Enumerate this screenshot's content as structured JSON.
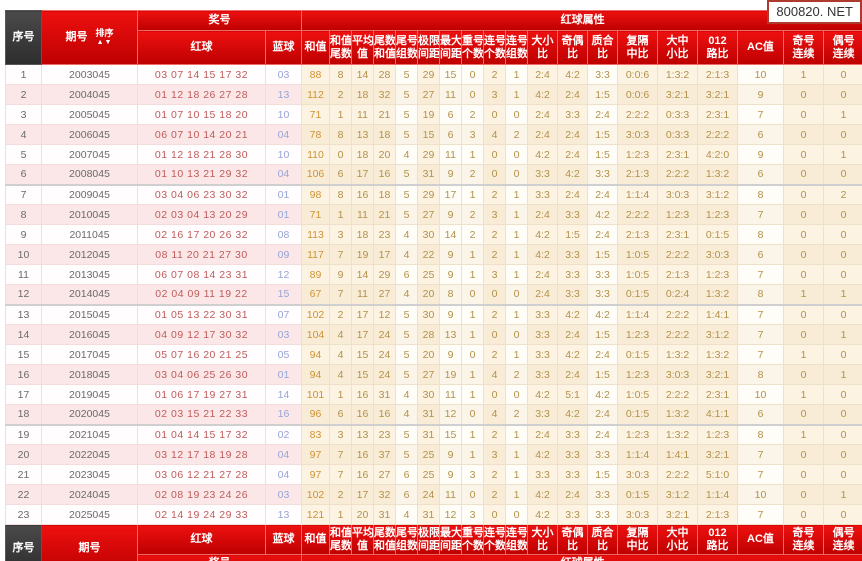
{
  "watermark": "800820. NET",
  "colors": {
    "header_red_top": "#ee1010",
    "header_red_bottom": "#bd0000",
    "dark_cell": "#3b3b3b",
    "red_ball": "#bf5b5b",
    "blue_ball": "#97a5d6",
    "value_text": "#b2914a",
    "row_pink": "#fbe7e7",
    "attr_cream": "#fdf3e2"
  },
  "labels": {
    "serial": "序号",
    "period": "期号",
    "sort": "排序",
    "sort_arrows": "▲▼",
    "prize_group": "奖号",
    "attr_group": "红球属性",
    "red": "红球",
    "blue": "蓝球"
  },
  "attr_headers": [
    [
      "和值"
    ],
    [
      "和值",
      "尾数"
    ],
    [
      "平均",
      "值"
    ],
    [
      "尾数",
      "和值"
    ],
    [
      "尾号",
      "组数"
    ],
    [
      "极限",
      "间距"
    ],
    [
      "最大",
      "间距"
    ],
    [
      "重号",
      "个数"
    ],
    [
      "连号",
      "个数"
    ],
    [
      "连号",
      "组数"
    ],
    [
      "大小",
      "比"
    ],
    [
      "奇偶",
      "比"
    ],
    [
      "质合",
      "比"
    ],
    [
      "复隔",
      "中比"
    ],
    [
      "大中",
      "小比"
    ],
    [
      "012",
      "路比"
    ],
    [
      "AC值"
    ],
    [
      "奇号",
      "连续"
    ],
    [
      "偶号",
      "连续"
    ]
  ],
  "attr_keys": [
    "sum",
    "sum-tail",
    "mean",
    "tail-sum",
    "tail-groups",
    "span",
    "max-gap",
    "repeat-count",
    "consecutive-count",
    "consecutive-groups",
    "big-small-ratio",
    "odd-even-ratio",
    "prime-composite-ratio",
    "fu-ge-zhong-ratio",
    "big-mid-small-ratio",
    "road-012-ratio",
    "ac-value",
    "odd-consecutive",
    "even-consecutive"
  ],
  "rows": [
    {
      "no": "1",
      "period": "2003045",
      "reds": "03 07 14 15 17 32",
      "blue": "03",
      "vals": [
        "88",
        "8",
        "14",
        "28",
        "5",
        "29",
        "15",
        "0",
        "2",
        "1",
        "2:4",
        "4:2",
        "3:3",
        "0:0:6",
        "1:3:2",
        "2:1:3",
        "10",
        "1",
        "0"
      ]
    },
    {
      "no": "2",
      "period": "2004045",
      "reds": "01 12 18 26 27 28",
      "blue": "13",
      "vals": [
        "112",
        "2",
        "18",
        "32",
        "5",
        "27",
        "11",
        "0",
        "3",
        "1",
        "4:2",
        "2:4",
        "1:5",
        "0:0:6",
        "3:2:1",
        "3:2:1",
        "9",
        "0",
        "0"
      ]
    },
    {
      "no": "3",
      "period": "2005045",
      "reds": "01 07 10 15 18 20",
      "blue": "10",
      "vals": [
        "71",
        "1",
        "11",
        "21",
        "5",
        "19",
        "6",
        "2",
        "0",
        "0",
        "2:4",
        "3:3",
        "2:4",
        "2:2:2",
        "0:3:3",
        "2:3:1",
        "7",
        "0",
        "1"
      ]
    },
    {
      "no": "4",
      "period": "2006045",
      "reds": "06 07 10 14 20 21",
      "blue": "04",
      "vals": [
        "78",
        "8",
        "13",
        "18",
        "5",
        "15",
        "6",
        "3",
        "4",
        "2",
        "2:4",
        "2:4",
        "1:5",
        "3:0:3",
        "0:3:3",
        "2:2:2",
        "6",
        "0",
        "0"
      ]
    },
    {
      "no": "5",
      "period": "2007045",
      "reds": "01 12 18 21 28 30",
      "blue": "10",
      "vals": [
        "110",
        "0",
        "18",
        "20",
        "4",
        "29",
        "11",
        "1",
        "0",
        "0",
        "4:2",
        "2:4",
        "1:5",
        "1:2:3",
        "2:3:1",
        "4:2:0",
        "9",
        "0",
        "1"
      ]
    },
    {
      "no": "6",
      "period": "2008045",
      "reds": "01 10 13 21 29 32",
      "blue": "04",
      "vals": [
        "106",
        "6",
        "17",
        "16",
        "5",
        "31",
        "9",
        "2",
        "0",
        "0",
        "3:3",
        "4:2",
        "3:3",
        "2:1:3",
        "2:2:2",
        "1:3:2",
        "6",
        "0",
        "0"
      ]
    },
    {
      "no": "7",
      "period": "2009045",
      "reds": "03 04 06 23 30 32",
      "blue": "01",
      "vals": [
        "98",
        "8",
        "16",
        "18",
        "5",
        "29",
        "17",
        "1",
        "2",
        "1",
        "3:3",
        "2:4",
        "2:4",
        "1:1:4",
        "3:0:3",
        "3:1:2",
        "8",
        "0",
        "2"
      ]
    },
    {
      "no": "8",
      "period": "2010045",
      "reds": "02 03 04 13 20 29",
      "blue": "01",
      "vals": [
        "71",
        "1",
        "11",
        "21",
        "5",
        "27",
        "9",
        "2",
        "3",
        "1",
        "2:4",
        "3:3",
        "4:2",
        "2:2:2",
        "1:2:3",
        "1:2:3",
        "7",
        "0",
        "0"
      ]
    },
    {
      "no": "9",
      "period": "2011045",
      "reds": "02 16 17 20 26 32",
      "blue": "08",
      "vals": [
        "113",
        "3",
        "18",
        "23",
        "4",
        "30",
        "14",
        "2",
        "2",
        "1",
        "4:2",
        "1:5",
        "2:4",
        "2:1:3",
        "2:3:1",
        "0:1:5",
        "8",
        "0",
        "0"
      ]
    },
    {
      "no": "10",
      "period": "2012045",
      "reds": "08 11 20 21 27 30",
      "blue": "09",
      "vals": [
        "117",
        "7",
        "19",
        "17",
        "4",
        "22",
        "9",
        "1",
        "2",
        "1",
        "4:2",
        "3:3",
        "1:5",
        "1:0:5",
        "2:2:2",
        "3:0:3",
        "6",
        "0",
        "0"
      ]
    },
    {
      "no": "11",
      "period": "2013045",
      "reds": "06 07 08 14 23 31",
      "blue": "12",
      "vals": [
        "89",
        "9",
        "14",
        "29",
        "6",
        "25",
        "9",
        "1",
        "3",
        "1",
        "2:4",
        "3:3",
        "3:3",
        "1:0:5",
        "2:1:3",
        "1:2:3",
        "7",
        "0",
        "0"
      ]
    },
    {
      "no": "12",
      "period": "2014045",
      "reds": "02 04 09 11 19 22",
      "blue": "15",
      "vals": [
        "67",
        "7",
        "11",
        "27",
        "4",
        "20",
        "8",
        "0",
        "0",
        "0",
        "2:4",
        "3:3",
        "3:3",
        "0:1:5",
        "0:2:4",
        "1:3:2",
        "8",
        "1",
        "1"
      ]
    },
    {
      "no": "13",
      "period": "2015045",
      "reds": "01 05 13 22 30 31",
      "blue": "07",
      "vals": [
        "102",
        "2",
        "17",
        "12",
        "5",
        "30",
        "9",
        "1",
        "2",
        "1",
        "3:3",
        "4:2",
        "4:2",
        "1:1:4",
        "2:2:2",
        "1:4:1",
        "7",
        "0",
        "0"
      ]
    },
    {
      "no": "14",
      "period": "2016045",
      "reds": "04 09 12 17 30 32",
      "blue": "03",
      "vals": [
        "104",
        "4",
        "17",
        "24",
        "5",
        "28",
        "13",
        "1",
        "0",
        "0",
        "3:3",
        "2:4",
        "1:5",
        "1:2:3",
        "2:2:2",
        "3:1:2",
        "7",
        "0",
        "1"
      ]
    },
    {
      "no": "15",
      "period": "2017045",
      "reds": "05 07 16 20 21 25",
      "blue": "05",
      "vals": [
        "94",
        "4",
        "15",
        "24",
        "5",
        "20",
        "9",
        "0",
        "2",
        "1",
        "3:3",
        "4:2",
        "2:4",
        "0:1:5",
        "1:3:2",
        "1:3:2",
        "7",
        "1",
        "0"
      ]
    },
    {
      "no": "16",
      "period": "2018045",
      "reds": "03 04 06 25 26 30",
      "blue": "01",
      "vals": [
        "94",
        "4",
        "15",
        "24",
        "5",
        "27",
        "19",
        "1",
        "4",
        "2",
        "3:3",
        "2:4",
        "1:5",
        "1:2:3",
        "3:0:3",
        "3:2:1",
        "8",
        "0",
        "1"
      ]
    },
    {
      "no": "17",
      "period": "2019045",
      "reds": "01 06 17 19 27 31",
      "blue": "14",
      "vals": [
        "101",
        "1",
        "16",
        "31",
        "4",
        "30",
        "11",
        "1",
        "0",
        "0",
        "4:2",
        "5:1",
        "4:2",
        "1:0:5",
        "2:2:2",
        "2:3:1",
        "10",
        "1",
        "0"
      ]
    },
    {
      "no": "18",
      "period": "2020045",
      "reds": "02 03 15 21 22 33",
      "blue": "16",
      "vals": [
        "96",
        "6",
        "16",
        "16",
        "4",
        "31",
        "12",
        "0",
        "4",
        "2",
        "3:3",
        "4:2",
        "2:4",
        "0:1:5",
        "1:3:2",
        "4:1:1",
        "6",
        "0",
        "0"
      ]
    },
    {
      "no": "19",
      "period": "2021045",
      "reds": "01 04 14 15 17 32",
      "blue": "02",
      "vals": [
        "83",
        "3",
        "13",
        "23",
        "5",
        "31",
        "15",
        "1",
        "2",
        "1",
        "2:4",
        "3:3",
        "2:4",
        "1:2:3",
        "1:3:2",
        "1:2:3",
        "8",
        "1",
        "0"
      ]
    },
    {
      "no": "20",
      "period": "2022045",
      "reds": "03 12 17 18 19 28",
      "blue": "04",
      "vals": [
        "97",
        "7",
        "16",
        "37",
        "5",
        "25",
        "9",
        "1",
        "3",
        "1",
        "4:2",
        "3:3",
        "3:3",
        "1:1:4",
        "1:4:1",
        "3:2:1",
        "7",
        "0",
        "0"
      ]
    },
    {
      "no": "21",
      "period": "2023045",
      "reds": "03 06 12 21 27 28",
      "blue": "04",
      "vals": [
        "97",
        "7",
        "16",
        "27",
        "6",
        "25",
        "9",
        "3",
        "2",
        "1",
        "3:3",
        "3:3",
        "1:5",
        "3:0:3",
        "2:2:2",
        "5:1:0",
        "7",
        "0",
        "0"
      ]
    },
    {
      "no": "22",
      "period": "2024045",
      "reds": "02 08 19 23 24 26",
      "blue": "03",
      "vals": [
        "102",
        "2",
        "17",
        "32",
        "6",
        "24",
        "11",
        "0",
        "2",
        "1",
        "4:2",
        "2:4",
        "3:3",
        "0:1:5",
        "3:1:2",
        "1:1:4",
        "10",
        "0",
        "1"
      ]
    },
    {
      "no": "23",
      "period": "2025045",
      "reds": "02 14 19 24 29 33",
      "blue": "13",
      "vals": [
        "121",
        "1",
        "20",
        "31",
        "4",
        "31",
        "12",
        "3",
        "0",
        "0",
        "4:2",
        "3:3",
        "3:3",
        "3:0:3",
        "3:2:1",
        "2:1:3",
        "7",
        "0",
        "0"
      ]
    }
  ]
}
